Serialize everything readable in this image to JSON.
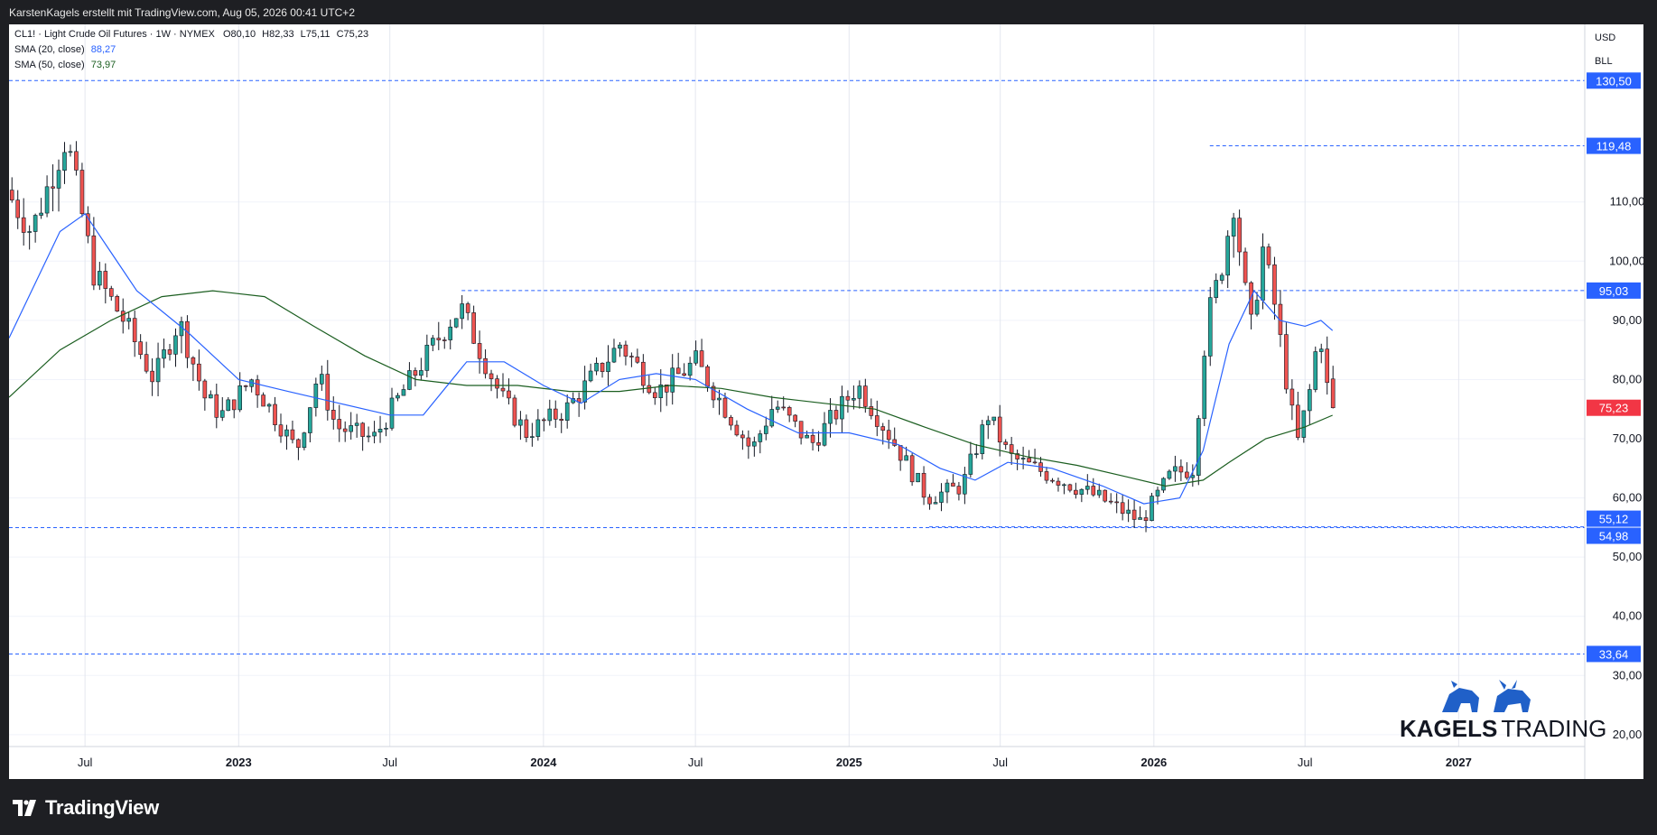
{
  "header": {
    "text": "KarstenKagels erstellt mit TradingView.com, Aug 05, 2026 00:41 UTC+2"
  },
  "legend": {
    "symbol_line": "CL1! · Light Crude Oil Futures · 1W · NYMEX",
    "ohlc": [
      {
        "label": "O",
        "value": "80,10"
      },
      {
        "label": "H",
        "value": "82,33"
      },
      {
        "label": "L",
        "value": "75,11"
      },
      {
        "label": "C",
        "value": "75,23"
      }
    ],
    "sma20": {
      "label": "SMA (20, close)",
      "value": "88,27",
      "color": "#2962ff"
    },
    "sma50": {
      "label": "SMA (50, close)",
      "value": "73,97",
      "color": "#1b5e20"
    }
  },
  "scale": {
    "currency": "USD",
    "unit": "BLL"
  },
  "footer": {
    "brand": "TradingView"
  },
  "watermark": {
    "brand_bold": "KAGELS",
    "brand_light": "TRADING"
  },
  "colors": {
    "up": "#26a69a",
    "down": "#ef5350",
    "level": "#2962ff",
    "current": "#f23645",
    "sma20": "#2962ff",
    "sma50": "#1b5e20"
  },
  "chart_data": {
    "type": "candlestick",
    "interval": "1W",
    "y_axis": {
      "min": 18,
      "max": 140,
      "ticks": [
        "20,00",
        "30,00",
        "40,00",
        "50,00",
        "60,00",
        "70,00",
        "80,00",
        "90,00",
        "100,00",
        "110,00"
      ],
      "tick_values": [
        20,
        30,
        40,
        50,
        60,
        70,
        80,
        90,
        100,
        110
      ]
    },
    "x_axis": {
      "start": "2022-04-01",
      "end": "2027-06-01",
      "ticks": [
        {
          "label": "Jul",
          "date": "2022-07-01"
        },
        {
          "label": "2023",
          "date": "2023-01-01"
        },
        {
          "label": "Jul",
          "date": "2023-07-01"
        },
        {
          "label": "2024",
          "date": "2024-01-01"
        },
        {
          "label": "Jul",
          "date": "2024-07-01"
        },
        {
          "label": "2025",
          "date": "2025-01-01"
        },
        {
          "label": "Jul",
          "date": "2025-07-01"
        },
        {
          "label": "2026",
          "date": "2026-01-01"
        },
        {
          "label": "Jul",
          "date": "2026-07-01"
        },
        {
          "label": "2027",
          "date": "2027-01-01"
        }
      ]
    },
    "levels": [
      {
        "value": 130.5,
        "label": "130,50"
      },
      {
        "value": 119.48,
        "label": "119,48",
        "from": "2026-03-09"
      },
      {
        "value": 95.03,
        "label": "95,03",
        "from": "2023-09-25"
      },
      {
        "value": 55.12,
        "label": "55,12",
        "from": "2025-04-07"
      },
      {
        "value": 54.98,
        "label": "54,98"
      },
      {
        "value": 33.64,
        "label": "33,64"
      }
    ],
    "current": {
      "value": 75.23,
      "label": "75,23"
    },
    "path_points": [
      [
        "2022-04-01",
        112
      ],
      [
        "2022-05-01",
        105
      ],
      [
        "2022-06-12",
        121
      ],
      [
        "2022-07-15",
        98
      ],
      [
        "2022-08-20",
        90
      ],
      [
        "2022-09-25",
        80
      ],
      [
        "2022-10-25",
        90
      ],
      [
        "2022-11-25",
        77
      ],
      [
        "2022-12-15",
        74
      ],
      [
        "2023-01-20",
        80
      ],
      [
        "2023-03-15",
        68
      ],
      [
        "2023-04-10",
        81
      ],
      [
        "2023-05-01",
        72
      ],
      [
        "2023-06-15",
        70
      ],
      [
        "2023-07-20",
        78
      ],
      [
        "2023-09-15",
        90
      ],
      [
        "2023-09-28",
        92
      ],
      [
        "2023-11-15",
        77
      ],
      [
        "2023-12-15",
        71
      ],
      [
        "2024-02-01",
        75
      ],
      [
        "2024-04-05",
        86
      ],
      [
        "2024-05-20",
        78
      ],
      [
        "2024-07-05",
        83
      ],
      [
        "2024-09-10",
        68
      ],
      [
        "2024-10-07",
        76
      ],
      [
        "2024-11-20",
        69
      ],
      [
        "2025-01-15",
        79
      ],
      [
        "2025-03-01",
        69
      ],
      [
        "2025-04-08",
        60
      ],
      [
        "2025-05-20",
        62
      ],
      [
        "2025-06-20",
        74
      ],
      [
        "2025-07-15",
        67
      ],
      [
        "2025-09-15",
        63
      ],
      [
        "2025-11-01",
        60
      ],
      [
        "2025-12-20",
        56
      ],
      [
        "2026-01-25",
        64
      ],
      [
        "2026-02-20",
        65
      ],
      [
        "2026-03-09",
        90
      ],
      [
        "2026-03-25",
        98
      ],
      [
        "2026-04-10",
        110
      ],
      [
        "2026-04-30",
        88
      ],
      [
        "2026-05-15",
        102
      ],
      [
        "2026-05-30",
        92
      ],
      [
        "2026-06-12",
        80
      ],
      [
        "2026-06-25",
        69
      ],
      [
        "2026-07-10",
        78
      ],
      [
        "2026-07-22",
        89
      ],
      [
        "2026-08-03",
        75.23
      ]
    ],
    "sma20_points": [
      [
        "2022-04-01",
        87
      ],
      [
        "2022-06-01",
        105
      ],
      [
        "2022-07-01",
        108
      ],
      [
        "2022-09-01",
        95
      ],
      [
        "2022-11-01",
        88
      ],
      [
        "2023-01-01",
        80
      ],
      [
        "2023-03-01",
        78
      ],
      [
        "2023-05-01",
        76
      ],
      [
        "2023-07-01",
        74
      ],
      [
        "2023-08-10",
        74
      ],
      [
        "2023-10-01",
        83
      ],
      [
        "2023-11-15",
        83
      ],
      [
        "2024-01-01",
        79
      ],
      [
        "2024-02-15",
        76
      ],
      [
        "2024-04-01",
        80
      ],
      [
        "2024-05-15",
        81
      ],
      [
        "2024-07-01",
        80
      ],
      [
        "2024-09-01",
        75
      ],
      [
        "2024-11-01",
        71
      ],
      [
        "2025-01-01",
        71
      ],
      [
        "2025-03-01",
        69
      ],
      [
        "2025-04-20",
        65
      ],
      [
        "2025-06-01",
        63
      ],
      [
        "2025-07-10",
        66
      ],
      [
        "2025-09-01",
        65
      ],
      [
        "2025-11-01",
        62
      ],
      [
        "2025-12-20",
        59
      ],
      [
        "2026-02-01",
        60
      ],
      [
        "2026-03-01",
        68
      ],
      [
        "2026-04-01",
        86
      ],
      [
        "2026-05-01",
        95
      ],
      [
        "2026-06-01",
        90
      ],
      [
        "2026-07-01",
        89
      ],
      [
        "2026-07-20",
        90
      ],
      [
        "2026-08-03",
        88.27
      ]
    ],
    "sma50_points": [
      [
        "2022-04-01",
        77
      ],
      [
        "2022-06-01",
        85
      ],
      [
        "2022-08-01",
        90
      ],
      [
        "2022-10-01",
        94
      ],
      [
        "2022-12-01",
        95
      ],
      [
        "2023-02-01",
        94
      ],
      [
        "2023-04-01",
        89
      ],
      [
        "2023-06-01",
        84
      ],
      [
        "2023-08-01",
        80
      ],
      [
        "2023-10-01",
        79
      ],
      [
        "2023-12-01",
        79
      ],
      [
        "2024-02-01",
        78
      ],
      [
        "2024-04-01",
        78
      ],
      [
        "2024-06-01",
        79
      ],
      [
        "2024-08-01",
        78.5
      ],
      [
        "2024-10-01",
        77
      ],
      [
        "2024-12-01",
        76
      ],
      [
        "2025-02-01",
        75
      ],
      [
        "2025-04-01",
        72
      ],
      [
        "2025-06-01",
        69
      ],
      [
        "2025-08-01",
        67
      ],
      [
        "2025-10-01",
        65.5
      ],
      [
        "2025-12-01",
        63.5
      ],
      [
        "2026-01-15",
        62
      ],
      [
        "2026-03-01",
        63
      ],
      [
        "2026-04-01",
        66
      ],
      [
        "2026-05-15",
        70
      ],
      [
        "2026-07-01",
        72
      ],
      [
        "2026-08-03",
        73.97
      ]
    ]
  }
}
